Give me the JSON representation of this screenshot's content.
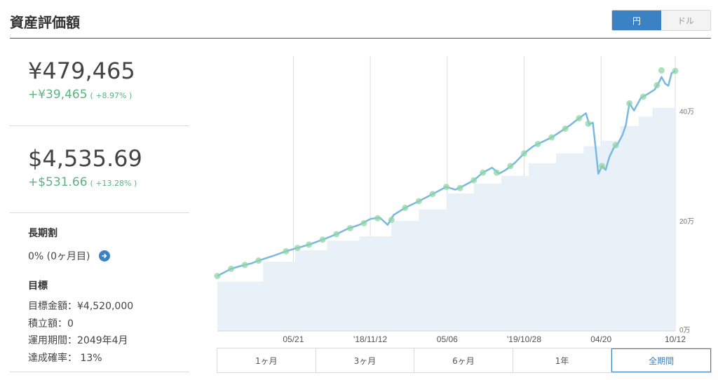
{
  "header": {
    "title": "資産評価額",
    "currency_options": [
      "円",
      "ドル"
    ],
    "selected_currency": "円"
  },
  "summary": {
    "yen_value": "¥479,465",
    "yen_change": "+¥39,465",
    "yen_change_pct": "( +8.97% )",
    "usd_value": "$4,535.69",
    "usd_change": "+$531.66",
    "usd_change_pct": "( +13.28% )"
  },
  "long_term": {
    "title": "長期割",
    "value": "0% (0ヶ月目)"
  },
  "goal": {
    "title": "目標",
    "lines": [
      "目標金額：¥4,520,000",
      "積立額：0",
      "運用期間：2049年4月",
      "達成確率： 13%"
    ]
  },
  "range_buttons": [
    "1ヶ月",
    "3ヶ月",
    "6ヶ月",
    "1年",
    "全期間"
  ],
  "selected_range": "全期間",
  "colors": {
    "accent": "#3b82c4",
    "positive": "#5ab57f",
    "line": "#7ab8e0",
    "area": "#e8f0f8",
    "marker": "#8fd6a6"
  },
  "chart_data": {
    "type": "line",
    "x_tick_labels": [
      "05/21",
      "'18/11/12",
      "05/06",
      "'19/10/28",
      "04/20",
      "10/12"
    ],
    "y_tick_labels": [
      "0万",
      "20万",
      "40万"
    ],
    "ylim": [
      0,
      50
    ],
    "xlim": [
      0,
      100
    ],
    "x_ticks": [
      16.6,
      33.4,
      50.2,
      67.0,
      83.8,
      100
    ],
    "y_ticks": [
      0,
      20,
      40
    ],
    "grid": "vertical",
    "series": [
      {
        "values": [
          [
            0,
            10
          ],
          [
            3,
            11.3
          ],
          [
            5,
            11.8
          ],
          [
            7.5,
            12.3
          ],
          [
            9,
            12.8
          ],
          [
            12,
            13.6
          ],
          [
            15,
            14.5
          ],
          [
            17.5,
            15.1
          ],
          [
            20,
            15.7
          ],
          [
            23,
            16.6
          ],
          [
            26,
            17.6
          ],
          [
            28.5,
            18.6
          ],
          [
            31,
            19.3
          ],
          [
            33.5,
            20.4
          ],
          [
            35.5,
            20.6
          ],
          [
            37.2,
            19.3
          ],
          [
            38.5,
            21.1
          ],
          [
            41,
            22.4
          ],
          [
            44,
            23.6
          ],
          [
            47,
            24.9
          ],
          [
            50,
            26.2
          ],
          [
            52,
            25.7
          ],
          [
            54,
            26.5
          ],
          [
            56,
            27.4
          ],
          [
            58,
            28.8
          ],
          [
            60,
            29.7
          ],
          [
            61.5,
            28.6
          ],
          [
            63,
            29.3
          ],
          [
            65,
            30.6
          ],
          [
            67,
            32.3
          ],
          [
            69,
            33.6
          ],
          [
            71,
            34.4
          ],
          [
            73,
            35.2
          ],
          [
            75,
            36.3
          ],
          [
            77,
            37.4
          ],
          [
            79,
            38.7
          ],
          [
            80.5,
            39.6
          ],
          [
            81.2,
            37.6
          ],
          [
            82.0,
            37.9
          ],
          [
            82.6,
            33.4
          ],
          [
            83.2,
            28.6
          ],
          [
            84.0,
            30.0
          ],
          [
            84.8,
            29.3
          ],
          [
            85.6,
            31.6
          ],
          [
            86.5,
            33.2
          ],
          [
            87.5,
            34.1
          ],
          [
            88.5,
            35.7
          ],
          [
            89.2,
            37.4
          ],
          [
            90.0,
            41.4
          ],
          [
            91.0,
            40.1
          ],
          [
            92.5,
            42.4
          ],
          [
            94.0,
            43.1
          ],
          [
            95.5,
            43.9
          ],
          [
            96.5,
            45.3
          ],
          [
            97.0,
            46.2
          ],
          [
            97.8,
            45.0
          ],
          [
            98.5,
            44.6
          ],
          [
            99.2,
            46.9
          ],
          [
            100,
            47.3
          ]
        ]
      }
    ],
    "markers": [
      [
        0,
        10
      ],
      [
        3,
        11.3
      ],
      [
        6,
        12.0
      ],
      [
        9,
        12.8
      ],
      [
        15,
        14.5
      ],
      [
        17.5,
        15.1
      ],
      [
        20,
        15.7
      ],
      [
        23,
        16.6
      ],
      [
        26,
        17.6
      ],
      [
        29,
        18.7
      ],
      [
        32,
        19.6
      ],
      [
        35,
        20.5
      ],
      [
        38,
        20.2
      ],
      [
        41,
        22.4
      ],
      [
        44,
        23.6
      ],
      [
        47,
        24.9
      ],
      [
        50,
        26.2
      ],
      [
        53,
        26.0
      ],
      [
        56,
        27.4
      ],
      [
        58,
        28.8
      ],
      [
        61,
        28.8
      ],
      [
        64,
        30.0
      ],
      [
        67,
        32.3
      ],
      [
        70,
        34.0
      ],
      [
        73,
        35.2
      ],
      [
        76,
        36.8
      ],
      [
        79,
        38.7
      ],
      [
        81,
        37.7
      ],
      [
        84,
        30.0
      ],
      [
        87,
        33.8
      ],
      [
        90,
        41.4
      ],
      [
        93,
        42.6
      ],
      [
        96,
        44.7
      ],
      [
        97,
        47.4
      ],
      [
        100,
        47.3
      ]
    ],
    "principal_steps": [
      [
        0,
        9.0
      ],
      [
        10,
        9.0
      ],
      [
        10,
        12.6
      ],
      [
        17,
        12.6
      ],
      [
        17,
        14.7
      ],
      [
        24,
        14.7
      ],
      [
        24,
        16.4
      ],
      [
        31,
        16.4
      ],
      [
        31,
        17.2
      ],
      [
        38,
        17.2
      ],
      [
        38,
        20.0
      ],
      [
        44,
        20.0
      ],
      [
        44,
        22.1
      ],
      [
        50,
        22.1
      ],
      [
        50,
        25.0
      ],
      [
        56,
        25.0
      ],
      [
        56,
        26.8
      ],
      [
        62,
        26.8
      ],
      [
        62,
        28.2
      ],
      [
        68,
        28.2
      ],
      [
        68,
        30.5
      ],
      [
        74,
        30.5
      ],
      [
        74,
        32.3
      ],
      [
        80,
        32.3
      ],
      [
        80,
        33.6
      ],
      [
        84,
        33.6
      ],
      [
        84,
        34.6
      ],
      [
        88,
        34.6
      ],
      [
        88,
        37.3
      ],
      [
        92,
        37.3
      ],
      [
        92,
        39.0
      ],
      [
        95,
        39.0
      ],
      [
        95,
        40.6
      ],
      [
        100,
        40.6
      ]
    ]
  }
}
